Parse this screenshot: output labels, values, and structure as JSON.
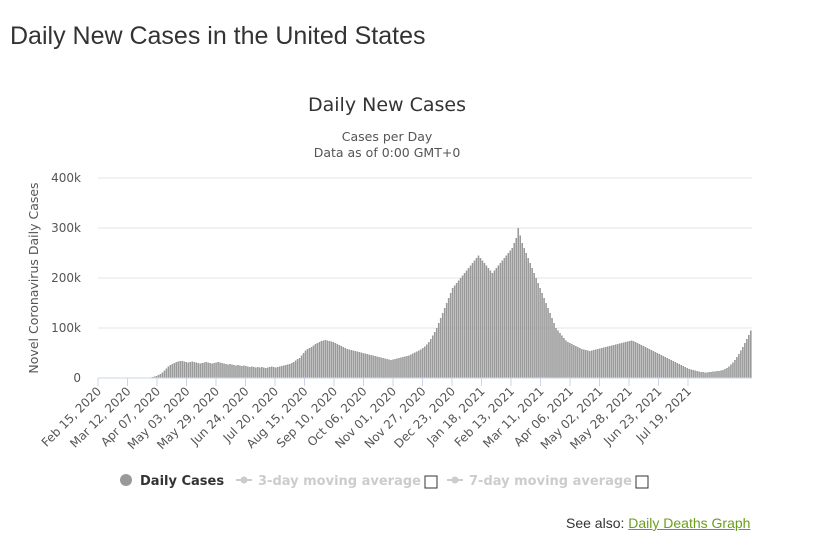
{
  "page": {
    "title": "Daily New Cases in the United States"
  },
  "see_also": {
    "label": "See also:",
    "link_text": "Daily Deaths Graph"
  },
  "legend": {
    "items": [
      {
        "label": "Daily Cases",
        "active": true,
        "color": "#999999"
      },
      {
        "label": "3-day moving average",
        "active": false,
        "color": "#cccccc"
      },
      {
        "label": "7-day moving average",
        "active": false,
        "color": "#cccccc"
      }
    ]
  },
  "chart_data": {
    "type": "bar",
    "title": "Daily New Cases",
    "subtitle": "Cases per Day",
    "subtitle2": "Data as of 0:00 GMT+0",
    "ylabel": "Novel Coronavirus Daily Cases",
    "ylim": [
      0,
      400000
    ],
    "y_ticks": [
      {
        "value": 0,
        "label": "0"
      },
      {
        "value": 100000,
        "label": "100k"
      },
      {
        "value": 200000,
        "label": "200k"
      },
      {
        "value": 300000,
        "label": "300k"
      },
      {
        "value": 400000,
        "label": "400k"
      }
    ],
    "x_start": "2020-02-15",
    "x_end": "2021-07-29",
    "x_tick_labels": [
      "Feb 15, 2020",
      "Mar 12, 2020",
      "Apr 07, 2020",
      "May 03, 2020",
      "May 29, 2020",
      "Jun 24, 2020",
      "Jul 20, 2020",
      "Aug 15, 2020",
      "Sep 10, 2020",
      "Oct 06, 2020",
      "Nov 01, 2020",
      "Nov 27, 2020",
      "Dec 23, 2020",
      "Jan 18, 2021",
      "Feb 13, 2021",
      "Mar 11, 2021",
      "Apr 06, 2021",
      "May 02, 2021",
      "May 28, 2021",
      "Jun 23, 2021",
      "Jul 19, 2021"
    ],
    "bar_color": "#999999",
    "grid": true,
    "series": [
      {
        "name": "Daily Cases",
        "values": [
          0,
          0,
          0,
          0,
          0,
          0,
          0,
          0,
          0,
          0,
          0,
          0,
          0,
          0,
          0,
          0,
          0,
          0,
          0,
          0,
          0,
          0,
          0,
          0,
          0,
          1000,
          2000,
          3000,
          4000,
          6000,
          8000,
          11000,
          15000,
          19000,
          23000,
          26000,
          28000,
          30000,
          32000,
          33000,
          34000,
          34000,
          33000,
          32000,
          31000,
          32000,
          33000,
          32000,
          31000,
          30000,
          29000,
          30000,
          31000,
          32000,
          31000,
          30000,
          29000,
          30000,
          31000,
          32000,
          31000,
          30000,
          29000,
          28000,
          27000,
          28000,
          27000,
          26000,
          25000,
          26000,
          25000,
          24000,
          25000,
          24000,
          23000,
          22000,
          23000,
          22000,
          21000,
          22000,
          21000,
          22000,
          21000,
          20000,
          21000,
          22000,
          23000,
          22000,
          21000,
          22000,
          23000,
          24000,
          25000,
          26000,
          27000,
          28000,
          30000,
          32000,
          35000,
          38000,
          40000,
          45000,
          50000,
          55000,
          58000,
          60000,
          62000,
          65000,
          68000,
          70000,
          72000,
          74000,
          75000,
          76000,
          75000,
          74000,
          73000,
          72000,
          70000,
          68000,
          66000,
          64000,
          62000,
          60000,
          58000,
          57000,
          56000,
          55000,
          54000,
          53000,
          52000,
          51000,
          50000,
          49000,
          48000,
          47000,
          46000,
          45000,
          44000,
          43000,
          42000,
          41000,
          40000,
          39000,
          38000,
          37000,
          36000,
          37000,
          38000,
          39000,
          40000,
          41000,
          42000,
          43000,
          44000,
          45000,
          47000,
          49000,
          51000,
          53000,
          55000,
          57000,
          60000,
          63000,
          67000,
          72000,
          78000,
          85000,
          92000,
          100000,
          110000,
          120000,
          130000,
          140000,
          150000,
          160000,
          170000,
          180000,
          185000,
          190000,
          195000,
          200000,
          205000,
          210000,
          215000,
          220000,
          225000,
          230000,
          235000,
          240000,
          245000,
          240000,
          235000,
          230000,
          225000,
          220000,
          215000,
          210000,
          215000,
          220000,
          225000,
          230000,
          235000,
          240000,
          245000,
          250000,
          255000,
          260000,
          270000,
          280000,
          300000,
          285000,
          270000,
          260000,
          250000,
          240000,
          230000,
          220000,
          210000,
          200000,
          190000,
          180000,
          170000,
          160000,
          150000,
          140000,
          130000,
          120000,
          110000,
          100000,
          95000,
          90000,
          85000,
          80000,
          75000,
          72000,
          70000,
          68000,
          66000,
          64000,
          62000,
          60000,
          58000,
          57000,
          56000,
          55000,
          54000,
          55000,
          56000,
          57000,
          58000,
          59000,
          60000,
          61000,
          62000,
          63000,
          64000,
          65000,
          66000,
          67000,
          68000,
          69000,
          70000,
          71000,
          72000,
          73000,
          74000,
          75000,
          74000,
          72000,
          70000,
          68000,
          66000,
          64000,
          62000,
          60000,
          58000,
          56000,
          54000,
          52000,
          50000,
          48000,
          46000,
          44000,
          42000,
          40000,
          38000,
          36000,
          34000,
          32000,
          30000,
          28000,
          26000,
          24000,
          22000,
          20000,
          18000,
          17000,
          16000,
          15000,
          14000,
          13000,
          12000,
          12000,
          11000,
          11000,
          12000,
          12000,
          13000,
          13000,
          14000,
          14000,
          15000,
          16000,
          18000,
          20000,
          23000,
          27000,
          31000,
          36000,
          42000,
          48000,
          55000,
          62000,
          70000,
          78000,
          86000,
          95000
        ]
      }
    ]
  }
}
